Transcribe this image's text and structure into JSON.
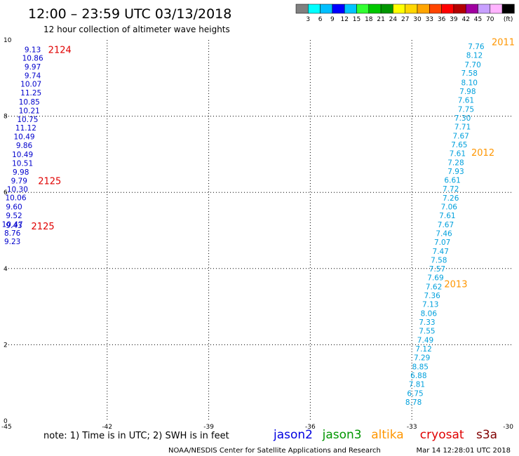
{
  "header": {
    "title": "12:00 – 23:59 UTC 03/13/2018",
    "subtitle": "12 hour collection of altimeter wave heights"
  },
  "colorbar": {
    "colors": [
      "#808080",
      "#00ffff",
      "#00bfff",
      "#0000ff",
      "#00c4ff",
      "#32ff32",
      "#00c800",
      "#009600",
      "#ffff00",
      "#ffd700",
      "#ffa500",
      "#ff4500",
      "#ff0000",
      "#b40000",
      "#a000a0",
      "#c8a0ff",
      "#ffb4ff",
      "#000000"
    ],
    "labels": [
      "3",
      "6",
      "9",
      "12",
      "15",
      "18",
      "21",
      "24",
      "27",
      "30",
      "33",
      "36",
      "39",
      "42",
      "45",
      "70"
    ],
    "unit": "(ft)"
  },
  "footer": {
    "note": "note:  1) Time is in UTC;  2) SWH is in feet",
    "credit": "NOAA/NESDIS Center for Satellite Applications and Research",
    "timestamp": "Mar 14 12:28:01 UTC 2018"
  },
  "legend": [
    {
      "name": "jason2",
      "color": "#0000e0"
    },
    {
      "name": "jason3",
      "color": "#009600"
    },
    {
      "name": "altika",
      "color": "#ff9600"
    },
    {
      "name": "cryosat",
      "color": "#e00000"
    },
    {
      "name": "s3a",
      "color": "#800000"
    }
  ],
  "chart_data": {
    "type": "scatter",
    "xlim": [
      -45,
      -30
    ],
    "ylim": [
      0,
      10
    ],
    "x_ticks": [
      -45,
      -42,
      -39,
      -36,
      -33,
      -30
    ],
    "y_ticks": [
      0,
      2,
      4,
      6,
      8,
      10
    ],
    "grid": true,
    "series": [
      {
        "name": "jason2",
        "color": "#0000cc",
        "points": [
          {
            "x": -44.2,
            "y": 9.75,
            "v": "9.13"
          },
          {
            "x": -44.2,
            "y": 9.53,
            "v": "10.86"
          },
          {
            "x": -44.2,
            "y": 9.3,
            "v": "9.97"
          },
          {
            "x": -44.2,
            "y": 9.07,
            "v": "9.74"
          },
          {
            "x": -44.25,
            "y": 8.85,
            "v": "10.07"
          },
          {
            "x": -44.25,
            "y": 8.62,
            "v": "11.25"
          },
          {
            "x": -44.3,
            "y": 8.38,
            "v": "10.85"
          },
          {
            "x": -44.3,
            "y": 8.15,
            "v": "10.21"
          },
          {
            "x": -44.35,
            "y": 7.92,
            "v": "10.75"
          },
          {
            "x": -44.4,
            "y": 7.7,
            "v": "11.12"
          },
          {
            "x": -44.45,
            "y": 7.47,
            "v": "10.49"
          },
          {
            "x": -44.45,
            "y": 7.24,
            "v": "9.86"
          },
          {
            "x": -44.5,
            "y": 7.0,
            "v": "10.49"
          },
          {
            "x": -44.5,
            "y": 6.77,
            "v": "10.51"
          },
          {
            "x": -44.55,
            "y": 6.54,
            "v": "9.98"
          },
          {
            "x": -44.6,
            "y": 6.31,
            "v": "9.79"
          },
          {
            "x": -44.65,
            "y": 6.09,
            "v": "10.30"
          },
          {
            "x": -44.7,
            "y": 5.87,
            "v": "10.06"
          },
          {
            "x": -44.75,
            "y": 5.63,
            "v": "9.60"
          },
          {
            "x": -44.75,
            "y": 5.4,
            "v": "9.52"
          },
          {
            "x": -44.8,
            "y": 5.17,
            "v": "10.47"
          },
          {
            "x": -44.75,
            "y": 5.14,
            "v": "9.43"
          },
          {
            "x": -44.8,
            "y": 4.94,
            "v": "8.76"
          },
          {
            "x": -44.8,
            "y": 4.71,
            "v": "9.23"
          }
        ]
      },
      {
        "name": "jason3",
        "color": "#00a0dc",
        "points": [
          {
            "x": -31.1,
            "y": 9.83,
            "v": "7.76"
          },
          {
            "x": -31.15,
            "y": 9.6,
            "v": "8.12"
          },
          {
            "x": -31.2,
            "y": 9.36,
            "v": "7.70"
          },
          {
            "x": -31.3,
            "y": 9.13,
            "v": "7.58"
          },
          {
            "x": -31.3,
            "y": 8.89,
            "v": "8.10"
          },
          {
            "x": -31.35,
            "y": 8.66,
            "v": "7.98"
          },
          {
            "x": -31.4,
            "y": 8.43,
            "v": "7.61"
          },
          {
            "x": -31.4,
            "y": 8.19,
            "v": "7.75"
          },
          {
            "x": -31.5,
            "y": 7.96,
            "v": "7.30"
          },
          {
            "x": -31.5,
            "y": 7.73,
            "v": "7.71"
          },
          {
            "x": -31.55,
            "y": 7.49,
            "v": "7.67"
          },
          {
            "x": -31.6,
            "y": 7.26,
            "v": "7.65"
          },
          {
            "x": -31.65,
            "y": 7.03,
            "v": "7.61"
          },
          {
            "x": -31.7,
            "y": 6.79,
            "v": "7.28"
          },
          {
            "x": -31.7,
            "y": 6.56,
            "v": "7.93"
          },
          {
            "x": -31.8,
            "y": 6.33,
            "v": "6.61"
          },
          {
            "x": -31.85,
            "y": 6.1,
            "v": "7.72"
          },
          {
            "x": -31.85,
            "y": 5.86,
            "v": "7.26"
          },
          {
            "x": -31.9,
            "y": 5.63,
            "v": "7.06"
          },
          {
            "x": -31.95,
            "y": 5.4,
            "v": "7.61"
          },
          {
            "x": -32.0,
            "y": 5.16,
            "v": "7.67"
          },
          {
            "x": -32.05,
            "y": 4.93,
            "v": "7.46"
          },
          {
            "x": -32.1,
            "y": 4.7,
            "v": "7.07"
          },
          {
            "x": -32.15,
            "y": 4.46,
            "v": "7.47"
          },
          {
            "x": -32.2,
            "y": 4.23,
            "v": "7.58"
          },
          {
            "x": -32.25,
            "y": 4.0,
            "v": "7.57"
          },
          {
            "x": -32.3,
            "y": 3.77,
            "v": "7.69"
          },
          {
            "x": -32.35,
            "y": 3.53,
            "v": "7.62"
          },
          {
            "x": -32.4,
            "y": 3.3,
            "v": "7.36"
          },
          {
            "x": -32.45,
            "y": 3.07,
            "v": "7.13"
          },
          {
            "x": -32.5,
            "y": 2.83,
            "v": "8.06"
          },
          {
            "x": -32.55,
            "y": 2.6,
            "v": "7.33"
          },
          {
            "x": -32.55,
            "y": 2.37,
            "v": "7.55"
          },
          {
            "x": -32.6,
            "y": 2.13,
            "v": "7.49"
          },
          {
            "x": -32.65,
            "y": 1.9,
            "v": "7.12"
          },
          {
            "x": -32.7,
            "y": 1.67,
            "v": "7.29"
          },
          {
            "x": -32.75,
            "y": 1.43,
            "v": "8.85"
          },
          {
            "x": -32.8,
            "y": 1.2,
            "v": "6.88"
          },
          {
            "x": -32.85,
            "y": 0.97,
            "v": "7.81"
          },
          {
            "x": -32.9,
            "y": 0.73,
            "v": "6.75"
          },
          {
            "x": -32.95,
            "y": 0.5,
            "v": "8.78"
          }
        ]
      }
    ],
    "pass_labels": [
      {
        "text": "2124",
        "x": -43.4,
        "y": 9.75,
        "color": "#e00000"
      },
      {
        "text": "2125",
        "x": -43.7,
        "y": 6.31,
        "color": "#e00000"
      },
      {
        "text": "2125",
        "x": -43.9,
        "y": 5.12,
        "color": "#e00000"
      },
      {
        "text": "2011",
        "x": -30.3,
        "y": 9.95,
        "color": "#ff9600"
      },
      {
        "text": "2012",
        "x": -30.9,
        "y": 7.05,
        "color": "#ff9600"
      },
      {
        "text": "2013",
        "x": -31.7,
        "y": 3.6,
        "color": "#ff9600"
      }
    ]
  }
}
